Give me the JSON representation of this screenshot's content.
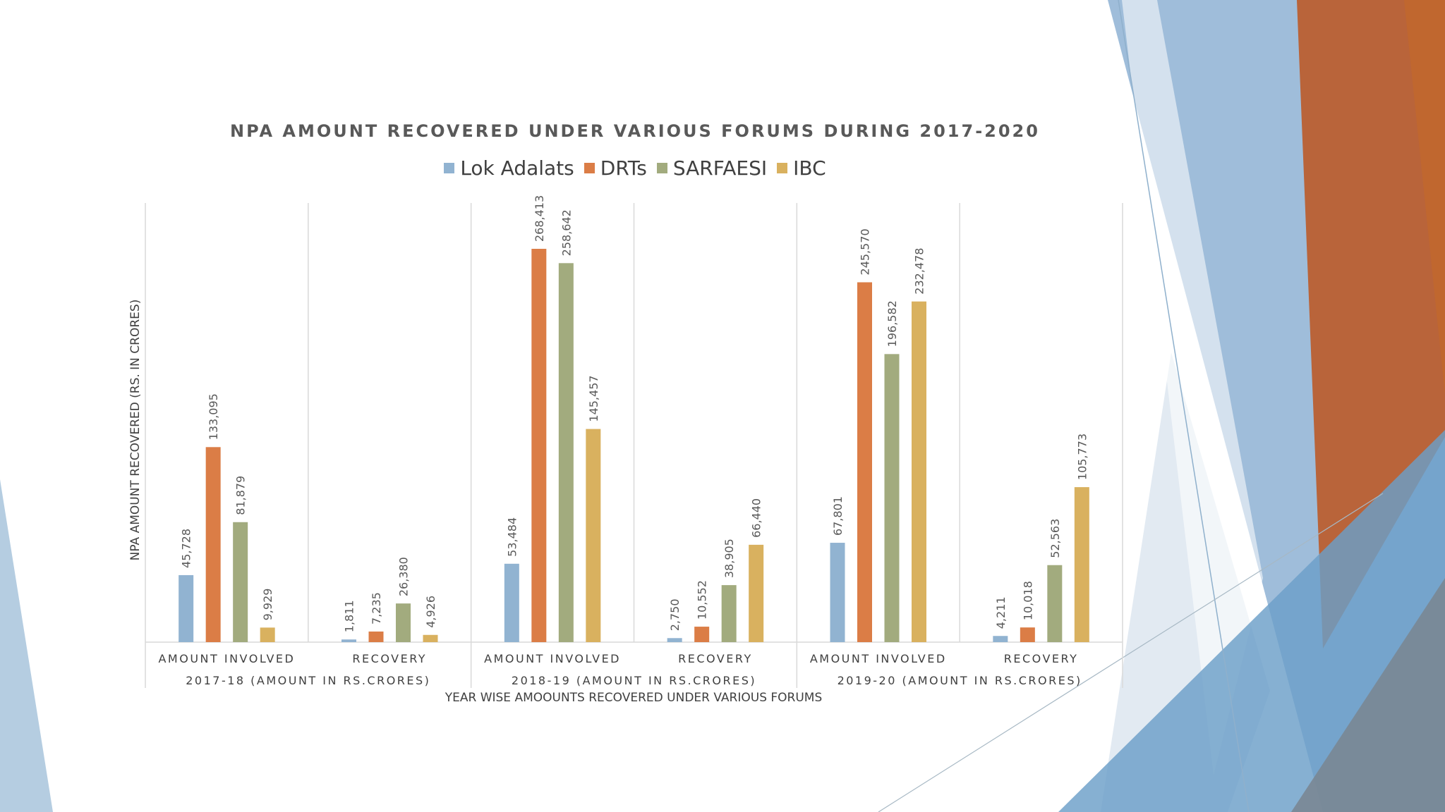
{
  "chart_data": {
    "type": "bar",
    "title": "NPA AMOUNT RECOVERED UNDER VARIOUS FORUMS DURING 2017-2020",
    "ylabel": "NPA AMOUNT RECOVERED (RS. IN CRORES)",
    "xlabel": "YEAR WISE AMOOUNTS RECOVERED UNDER VARIOUS FORUMS",
    "ylim": [
      0,
      300000
    ],
    "grid": false,
    "legend_position": "top",
    "groups": [
      {
        "label": "2017-18 (AMOUNT IN RS.CRORES)",
        "categories": [
          "AMOUNT INVOLVED",
          "RECOVERY"
        ]
      },
      {
        "label": "2018-19 (AMOUNT IN RS.CRORES)",
        "categories": [
          "AMOUNT INVOLVED",
          "RECOVERY"
        ]
      },
      {
        "label": "2019-20 (AMOUNT IN RS.CRORES)",
        "categories": [
          "AMOUNT INVOLVED",
          "RECOVERY"
        ]
      }
    ],
    "categories": [
      "AMOUNT INVOLVED",
      "RECOVERY",
      "AMOUNT INVOLVED",
      "RECOVERY",
      "AMOUNT INVOLVED",
      "RECOVERY"
    ],
    "series": [
      {
        "name": "Lok Adalats",
        "color": "#91b3d1",
        "values": [
          45728,
          1811,
          53484,
          2750,
          67801,
          4211
        ],
        "labels": [
          "45,728",
          "1,811",
          "53,484",
          "2,750",
          "67,801",
          "4,211"
        ]
      },
      {
        "name": "DRTs",
        "color": "#db7d46",
        "values": [
          133095,
          7235,
          268413,
          10552,
          245570,
          10018
        ],
        "labels": [
          "133,095",
          "7,235",
          "268,413",
          "10,552",
          "245,570",
          "10,018"
        ]
      },
      {
        "name": "SARFAESI",
        "color": "#a2ab7e",
        "values": [
          81879,
          26380,
          258642,
          38905,
          196582,
          52563
        ],
        "labels": [
          "81,879",
          "26,380",
          "258,642",
          "38,905",
          "196,582",
          "52,563"
        ]
      },
      {
        "name": "IBC",
        "color": "#d9b15f",
        "values": [
          9929,
          4926,
          145457,
          66440,
          232478,
          105773
        ],
        "labels": [
          "9,929",
          "4,926",
          "145,457",
          "66,440",
          "232,478",
          "105,773"
        ]
      }
    ]
  }
}
